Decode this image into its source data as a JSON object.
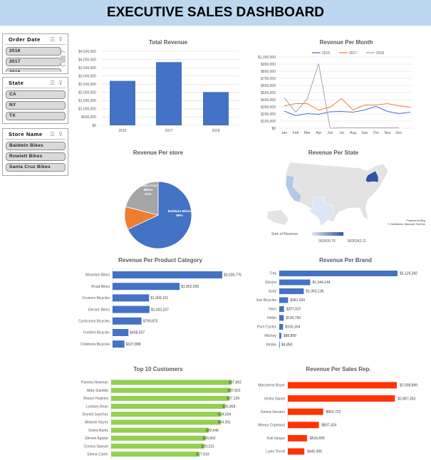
{
  "header": {
    "title": "EXECUTIVE SALES DASHBOARD",
    "background": "#bdd7ee"
  },
  "slicers": [
    {
      "title": "Order Date",
      "items": [
        "2016",
        "2017",
        "2018"
      ]
    },
    {
      "title": "State",
      "items": [
        "CA",
        "NY",
        "TX"
      ]
    },
    {
      "title": "Store Name",
      "items": [
        "Baldwin Bikes",
        "Rowlett Bikes",
        "Santa Cruz Bikes"
      ]
    }
  ],
  "slicer_icons": [
    "multi-select-icon",
    "clear-filter-icon"
  ],
  "chart_data": [
    {
      "id": "total_revenue",
      "type": "bar",
      "title": "Total Revenue",
      "categories": [
        "2016",
        "2017",
        "2018"
      ],
      "values": [
        2700000,
        3840000,
        2020000
      ],
      "ylim": [
        0,
        4500000
      ],
      "yticks": [
        "$0",
        "$500,000",
        "$1,000,000",
        "$1,500,000",
        "$2,000,000",
        "$2,500,000",
        "$3,000,000",
        "$3,500,000",
        "$4,000,000",
        "$4,500,000"
      ],
      "color": "#4472c4",
      "grid": true
    },
    {
      "id": "revenue_per_month",
      "type": "line",
      "title": "Revenue Per Month",
      "categories": [
        "Jan",
        "Feb",
        "Mar",
        "Apr",
        "Jun",
        "Jul",
        "Aug",
        "Sep",
        "Oct",
        "Nov",
        "Dec",
        ""
      ],
      "ylim": [
        0,
        1000000
      ],
      "yticks": [
        "$0",
        "$100,000",
        "$200,000",
        "$300,000",
        "$400,000",
        "$500,000",
        "$600,000",
        "$700,000",
        "$800,000",
        "$900,000",
        "$1,000,000"
      ],
      "series": [
        {
          "name": "2016",
          "color": "#4472c4",
          "values": [
            240000,
            175000,
            205000,
            195000,
            230000,
            235000,
            225000,
            255000,
            305000,
            235000,
            205000,
            225000
          ]
        },
        {
          "name": "2017",
          "color": "#ed7d31",
          "values": [
            315000,
            345000,
            345000,
            255000,
            295000,
            415000,
            255000,
            325000,
            325000,
            345000,
            315000,
            295000
          ]
        },
        {
          "name": "2018",
          "color": "#a5a5a5",
          "values": [
            425000,
            225000,
            410000,
            905000,
            0,
            5000,
            5000,
            5000,
            5000,
            5000,
            5000,
            null
          ]
        }
      ],
      "legend": "top",
      "grid": true
    },
    {
      "id": "revenue_per_store",
      "type": "pie",
      "title": "Revenue Per store",
      "slices": [
        {
          "label": "Baldwin Bikes",
          "pct": 68,
          "color": "#4472c4"
        },
        {
          "label": "Rowlett Bikes",
          "pct": 11,
          "color": "#ed7d31"
        },
        {
          "label": "Santa Cruz Bikes",
          "pct": 21,
          "color": "#a5a5a5"
        }
      ]
    },
    {
      "id": "revenue_per_state",
      "type": "map",
      "title": "Revenue Per State",
      "legend_title": "Sum of Revenue",
      "min_label": "962600.76",
      "max_label": "5826242.21",
      "min_color": "#dde6f6",
      "max_color": "#2f55a4",
      "states": [
        {
          "state": "NY",
          "color": "#2f55a4"
        },
        {
          "state": "CA",
          "color": "#b4c7e7"
        },
        {
          "state": "TX",
          "color": "#dde6f6"
        }
      ],
      "attribution": [
        "Powered by Bing",
        "© GeoNames, Microsoft, TomTom"
      ]
    },
    {
      "id": "revenue_per_product_category",
      "type": "bar",
      "orientation": "horizontal",
      "title": "Revenue Per Product Category",
      "color": "#4472c4",
      "categories": [
        "Mountain Bikes",
        "Road Bikes",
        "Cruisers Bicycles",
        "Electric Bikes",
        "Cyclocross Bicycles",
        "Comfort Bicycles",
        "Childrens Bicycles"
      ],
      "values": [
        3030776,
        1852556,
        1009151,
        1020237,
        799875,
        438507,
        327888
      ],
      "labels": [
        "$3,030,776",
        "$1,852,556",
        "$1,009,151",
        "$1,020,237",
        "$799,875",
        "$438,507",
        "$327,888"
      ]
    },
    {
      "id": "revenue_per_brand",
      "type": "bar",
      "orientation": "horizontal",
      "title": "Revenue Per Brand",
      "color": "#4472c4",
      "categories": [
        "Trek",
        "Electra",
        "Surly",
        "Sun Bicycles",
        "Haro",
        "Heller",
        "Pure Cycles",
        "Ritchey",
        "Strider"
      ],
      "values": [
        5129382,
        1344144,
        1063136,
        381920,
        207037,
        193790,
        166164,
        88899,
        4850
      ],
      "labels": [
        "$5,129,382",
        "$1,344,144",
        "$1,063,136",
        "$381,920",
        "$207,037",
        "$193,790",
        "$166,164",
        "$88,899",
        "$4,850"
      ]
    },
    {
      "id": "top_10_customers",
      "type": "bar",
      "orientation": "horizontal",
      "title": "Top 10 Customers",
      "color": "#92d050",
      "categories": [
        "Pamela Newman",
        "Abby Gamble",
        "Sharyn Hopkins",
        "Lyndsey Bean",
        "Emmitt Sanchez",
        "Melanie Hayes",
        "Debra Burks",
        "Elinore Aguilar",
        "Corrina Sawyer",
        "Shena Carter"
      ],
      "values": [
        37802,
        37501,
        37139,
        35858,
        34504,
        34391,
        30646,
        29662,
        29215,
        27619
      ],
      "labels": [
        "$37,802",
        "$37,501",
        "$37,139",
        "$35,858",
        "$34,504",
        "$34,391",
        "$30,646",
        "$29,662",
        "$29,215",
        "$27,619"
      ]
    },
    {
      "id": "revenue_per_sales_rep",
      "type": "bar",
      "orientation": "horizontal",
      "title": "Revenue Per Sales Rep.",
      "color": "#ff3300",
      "categories": [
        "Marcelene Boyer",
        "Venita Daniel",
        "Genna Serrano",
        "Mireya Copeland",
        "Kali Vargas",
        "Layla Terrell"
      ],
      "values": [
        2938889,
        2887353,
        952722,
        837424,
        516695,
        445906
      ],
      "labels": [
        "$2,938,889",
        "$2,887,353",
        "$952,722",
        "$837,424",
        "$516,695",
        "$445,906"
      ]
    }
  ]
}
